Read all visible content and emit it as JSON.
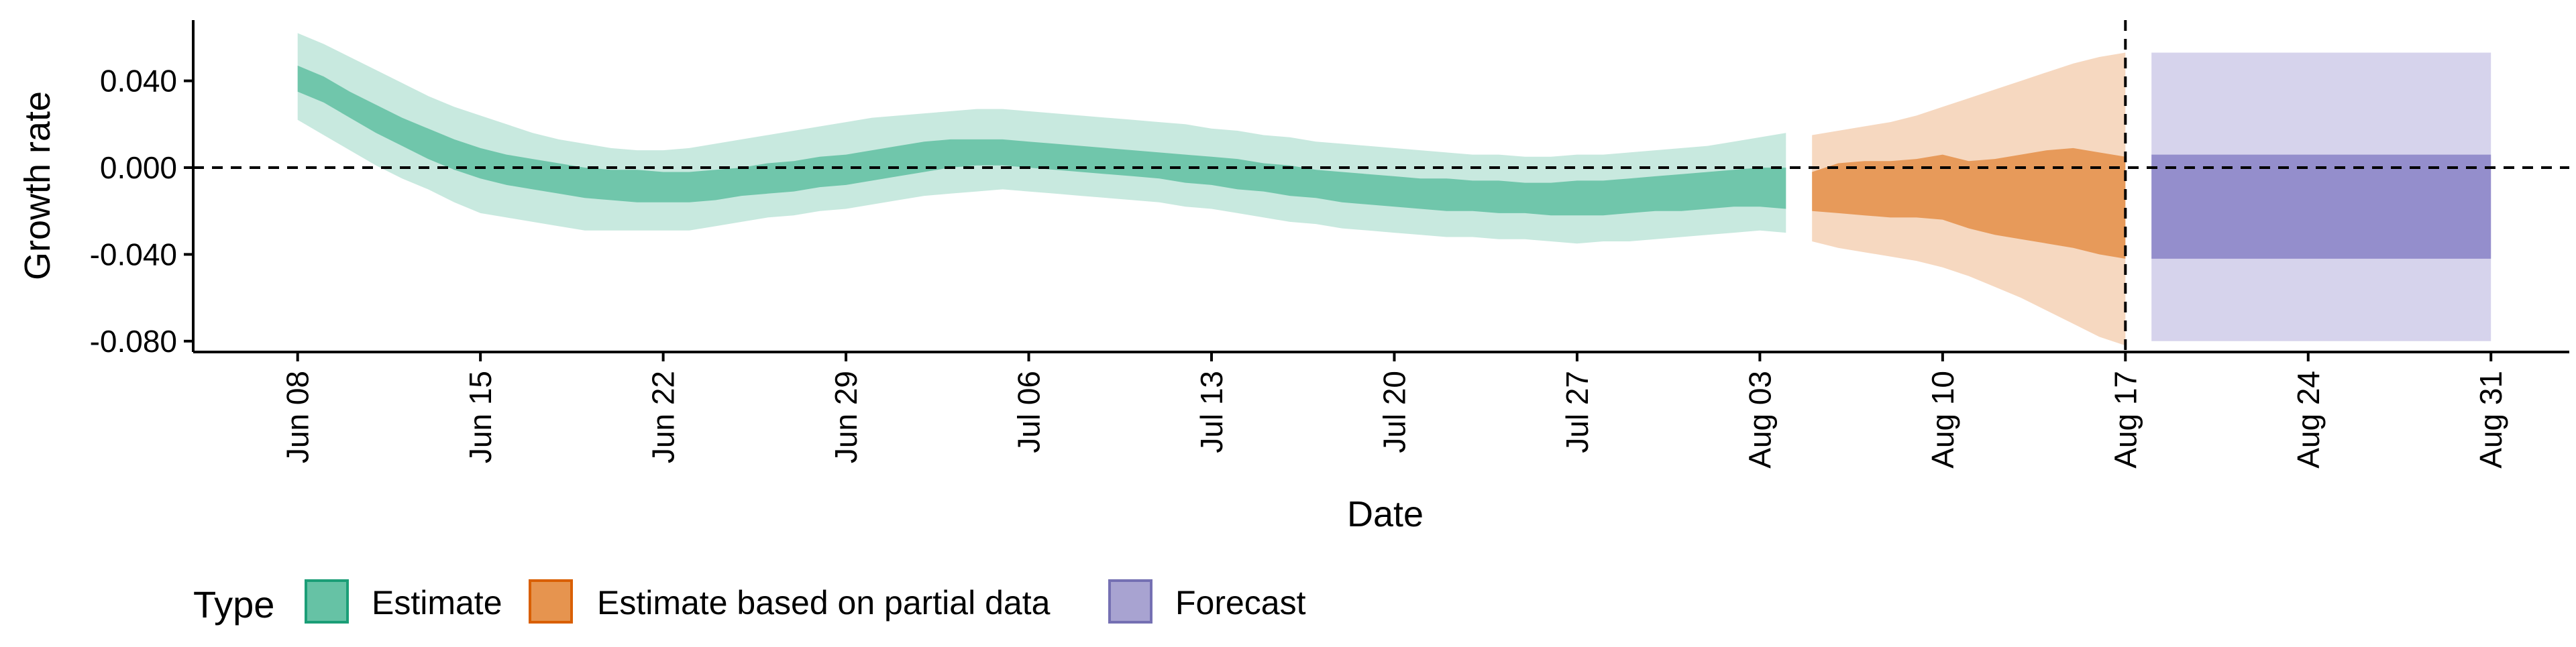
{
  "chart_data": {
    "type": "area",
    "title": "",
    "xlabel": "Date",
    "ylabel": "Growth rate",
    "xlim": [
      "2020-06-04",
      "2020-09-03"
    ],
    "ylim": [
      -0.085,
      0.068
    ],
    "y_ticks": [
      -0.08,
      -0.04,
      0.0,
      0.04
    ],
    "y_tick_labels": [
      "-0.080",
      "-0.040",
      "0.000",
      "0.040"
    ],
    "x_ticks": [
      "2020-06-08",
      "2020-06-15",
      "2020-06-22",
      "2020-06-29",
      "2020-07-06",
      "2020-07-13",
      "2020-07-20",
      "2020-07-27",
      "2020-08-03",
      "2020-08-10",
      "2020-08-17",
      "2020-08-24",
      "2020-08-31"
    ],
    "x_tick_labels": [
      "Jun 08",
      "Jun 15",
      "Jun 22",
      "Jun 29",
      "Jul 06",
      "Jul 13",
      "Jul 20",
      "Jul 27",
      "Aug 03",
      "Aug 10",
      "Aug 17",
      "Aug 24",
      "Aug 31"
    ],
    "hline_y": 0,
    "vline_x": "2020-08-17",
    "grid": false,
    "legend": {
      "title": "Type",
      "position": "bottom-left",
      "entries": [
        "Estimate",
        "Estimate based on partial data",
        "Forecast"
      ]
    },
    "series": [
      {
        "name": "Estimate",
        "color": "#66c2a5",
        "x": [
          "2020-06-08",
          "2020-06-09",
          "2020-06-10",
          "2020-06-11",
          "2020-06-12",
          "2020-06-13",
          "2020-06-14",
          "2020-06-15",
          "2020-06-16",
          "2020-06-17",
          "2020-06-18",
          "2020-06-19",
          "2020-06-20",
          "2020-06-21",
          "2020-06-22",
          "2020-06-23",
          "2020-06-24",
          "2020-06-25",
          "2020-06-26",
          "2020-06-27",
          "2020-06-28",
          "2020-06-29",
          "2020-06-30",
          "2020-07-01",
          "2020-07-02",
          "2020-07-03",
          "2020-07-04",
          "2020-07-05",
          "2020-07-06",
          "2020-07-07",
          "2020-07-08",
          "2020-07-09",
          "2020-07-10",
          "2020-07-11",
          "2020-07-12",
          "2020-07-13",
          "2020-07-14",
          "2020-07-15",
          "2020-07-16",
          "2020-07-17",
          "2020-07-18",
          "2020-07-19",
          "2020-07-20",
          "2020-07-21",
          "2020-07-22",
          "2020-07-23",
          "2020-07-24",
          "2020-07-25",
          "2020-07-26",
          "2020-07-27",
          "2020-07-28",
          "2020-07-29",
          "2020-07-30",
          "2020-07-31",
          "2020-08-01",
          "2020-08-02",
          "2020-08-03",
          "2020-08-04"
        ],
        "lower_90": [
          0.022,
          0.015,
          0.008,
          0.001,
          -0.005,
          -0.01,
          -0.016,
          -0.021,
          -0.023,
          -0.025,
          -0.027,
          -0.029,
          -0.029,
          -0.029,
          -0.029,
          -0.029,
          -0.027,
          -0.025,
          -0.023,
          -0.022,
          -0.02,
          -0.019,
          -0.017,
          -0.015,
          -0.013,
          -0.012,
          -0.011,
          -0.01,
          -0.011,
          -0.012,
          -0.013,
          -0.014,
          -0.015,
          -0.016,
          -0.018,
          -0.019,
          -0.021,
          -0.023,
          -0.025,
          -0.026,
          -0.028,
          -0.029,
          -0.03,
          -0.031,
          -0.032,
          -0.032,
          -0.033,
          -0.033,
          -0.034,
          -0.035,
          -0.034,
          -0.034,
          -0.033,
          -0.032,
          -0.031,
          -0.03,
          -0.029,
          -0.03
        ],
        "lower_50": [
          0.035,
          0.03,
          0.023,
          0.016,
          0.01,
          0.004,
          -0.001,
          -0.005,
          -0.008,
          -0.01,
          -0.012,
          -0.014,
          -0.015,
          -0.016,
          -0.016,
          -0.016,
          -0.015,
          -0.013,
          -0.012,
          -0.011,
          -0.009,
          -0.008,
          -0.006,
          -0.004,
          -0.002,
          0.0,
          0.001,
          0.001,
          0.0,
          -0.001,
          -0.002,
          -0.003,
          -0.004,
          -0.005,
          -0.007,
          -0.008,
          -0.01,
          -0.011,
          -0.013,
          -0.014,
          -0.016,
          -0.017,
          -0.018,
          -0.019,
          -0.02,
          -0.02,
          -0.021,
          -0.021,
          -0.022,
          -0.022,
          -0.022,
          -0.021,
          -0.02,
          -0.02,
          -0.019,
          -0.018,
          -0.018,
          -0.019
        ],
        "upper_50": [
          0.047,
          0.042,
          0.035,
          0.029,
          0.023,
          0.018,
          0.013,
          0.009,
          0.006,
          0.004,
          0.002,
          0.0,
          -0.001,
          -0.001,
          -0.002,
          -0.002,
          -0.001,
          0.0,
          0.002,
          0.003,
          0.005,
          0.006,
          0.008,
          0.01,
          0.012,
          0.013,
          0.013,
          0.013,
          0.012,
          0.011,
          0.01,
          0.009,
          0.008,
          0.007,
          0.006,
          0.005,
          0.004,
          0.002,
          0.001,
          -0.001,
          -0.002,
          -0.003,
          -0.004,
          -0.005,
          -0.005,
          -0.006,
          -0.006,
          -0.007,
          -0.007,
          -0.006,
          -0.006,
          -0.005,
          -0.004,
          -0.003,
          -0.002,
          -0.001,
          0.0,
          0.0
        ],
        "upper_90": [
          0.062,
          0.057,
          0.051,
          0.045,
          0.039,
          0.033,
          0.028,
          0.024,
          0.02,
          0.016,
          0.013,
          0.011,
          0.009,
          0.008,
          0.008,
          0.009,
          0.011,
          0.013,
          0.015,
          0.017,
          0.019,
          0.021,
          0.023,
          0.024,
          0.025,
          0.026,
          0.027,
          0.027,
          0.026,
          0.025,
          0.024,
          0.023,
          0.022,
          0.021,
          0.02,
          0.018,
          0.017,
          0.015,
          0.014,
          0.012,
          0.011,
          0.01,
          0.009,
          0.008,
          0.007,
          0.006,
          0.006,
          0.005,
          0.005,
          0.006,
          0.006,
          0.007,
          0.008,
          0.009,
          0.01,
          0.012,
          0.014,
          0.016
        ]
      },
      {
        "name": "Estimate based on partial data",
        "color": "#e6944f",
        "x": [
          "2020-08-05",
          "2020-08-06",
          "2020-08-07",
          "2020-08-08",
          "2020-08-09",
          "2020-08-10",
          "2020-08-11",
          "2020-08-12",
          "2020-08-13",
          "2020-08-14",
          "2020-08-15",
          "2020-08-16",
          "2020-08-17"
        ],
        "lower_90": [
          -0.034,
          -0.037,
          -0.039,
          -0.041,
          -0.043,
          -0.046,
          -0.05,
          -0.055,
          -0.06,
          -0.066,
          -0.072,
          -0.078,
          -0.082
        ],
        "lower_50": [
          -0.02,
          -0.021,
          -0.022,
          -0.023,
          -0.023,
          -0.024,
          -0.028,
          -0.031,
          -0.033,
          -0.035,
          -0.037,
          -0.04,
          -0.042
        ],
        "upper_50": [
          -0.002,
          0.002,
          0.003,
          0.003,
          0.004,
          0.006,
          0.003,
          0.004,
          0.006,
          0.008,
          0.009,
          0.007,
          0.005
        ],
        "upper_90": [
          0.015,
          0.017,
          0.019,
          0.021,
          0.024,
          0.028,
          0.032,
          0.036,
          0.04,
          0.044,
          0.048,
          0.051,
          0.053
        ]
      },
      {
        "name": "Forecast",
        "color": "#8d86c9",
        "x": [
          "2020-08-18",
          "2020-08-31"
        ],
        "lower_90": [
          -0.08,
          -0.08
        ],
        "lower_50": [
          -0.042,
          -0.042
        ],
        "upper_50": [
          0.006,
          0.006
        ],
        "upper_90": [
          0.053,
          0.053
        ]
      }
    ]
  },
  "legend_colors": {
    "Estimate": {
      "fill": "#66c2a5",
      "stroke": "#1b9e77"
    },
    "Estimate based on partial data": {
      "fill": "#e6944f",
      "stroke": "#d95f02"
    },
    "Forecast": {
      "fill": "#a8a3d1",
      "stroke": "#7570b3"
    }
  }
}
